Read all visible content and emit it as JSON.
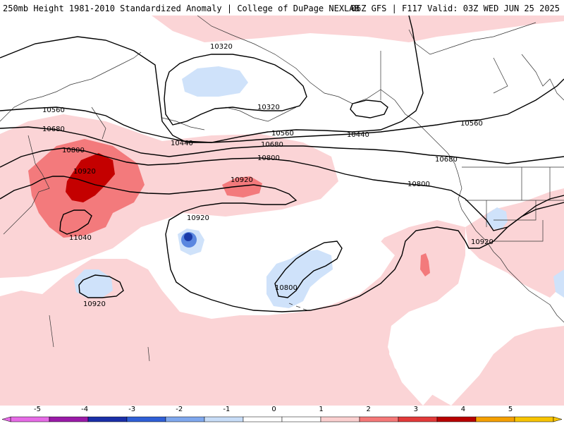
{
  "header": {
    "left_title": "250mb Height 1981-2010 Standardized Anomaly | College of DuPage NEXLAB",
    "right_title": "06Z GFS | F117 Valid: 03Z WED JUN 25 2025"
  },
  "contour_labels": [
    {
      "id": "c10320a",
      "text": "10320"
    },
    {
      "id": "c10320b",
      "text": "10320"
    },
    {
      "id": "c10560a",
      "text": "10560"
    },
    {
      "id": "c10560b",
      "text": "10560"
    },
    {
      "id": "c10560c",
      "text": "10560"
    },
    {
      "id": "c10440a",
      "text": "10440"
    },
    {
      "id": "c10440b",
      "text": "10440"
    },
    {
      "id": "c10680a",
      "text": "10680"
    },
    {
      "id": "c10680b",
      "text": "10680"
    },
    {
      "id": "c10680c",
      "text": "10680"
    },
    {
      "id": "c10800a",
      "text": "10800"
    },
    {
      "id": "c10800b",
      "text": "10800"
    },
    {
      "id": "c10800c",
      "text": "10800"
    },
    {
      "id": "c10800d",
      "text": "10800"
    },
    {
      "id": "c10920a",
      "text": "10920"
    },
    {
      "id": "c10920b",
      "text": "10920"
    },
    {
      "id": "c10920c",
      "text": "10920"
    },
    {
      "id": "c10920d",
      "text": "10920"
    },
    {
      "id": "c10920e",
      "text": "10920"
    },
    {
      "id": "c11040a",
      "text": "11040"
    }
  ],
  "colorbar": {
    "labels": [
      "-5",
      "-4",
      "-3",
      "-2",
      "-1",
      "0",
      "1",
      "2",
      "3",
      "4",
      "5"
    ],
    "colors": [
      "#e66be6",
      "#9a1aa8",
      "#1a2fa8",
      "#2f5fd6",
      "#7fa8ee",
      "#c8ddf8",
      "#ffffff",
      "#ffffff",
      "#fbd0d0",
      "#f57878",
      "#e23a3a",
      "#b80000",
      "#f5a000",
      "#f8c400"
    ]
  },
  "colors": {
    "anomaly_pos_1": "#fbd4d6",
    "anomaly_pos_2": "#f37a7c",
    "anomaly_pos_3": "#c40000",
    "anomaly_neg_1": "#cfe2fa",
    "anomaly_neg_2": "#5a87e0",
    "anomaly_neg_3": "#1a3aa8",
    "coastline": "#000000"
  }
}
